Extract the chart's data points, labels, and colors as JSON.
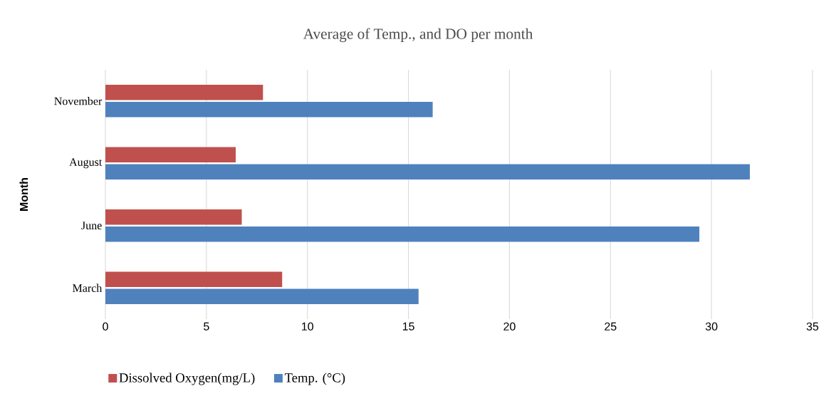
{
  "chart_data": {
    "type": "bar",
    "orientation": "horizontal",
    "title": "Average of Temp., and DO per month",
    "ylabel": "Month",
    "categories": [
      "November",
      "August",
      "June",
      "March"
    ],
    "series": [
      {
        "name": "Dissolved Oxygen(mg/L)",
        "color": "#c0504d",
        "values": [
          7.8,
          6.45,
          6.75,
          8.75
        ]
      },
      {
        "name": "Temp. (°C)",
        "color": "#4f81bd",
        "values": [
          16.2,
          31.9,
          29.4,
          15.5
        ]
      }
    ],
    "xlim": [
      0,
      35
    ],
    "xticks": [
      0,
      5,
      10,
      15,
      20,
      25,
      30,
      35
    ],
    "grid": "x",
    "legend": "bottom"
  }
}
